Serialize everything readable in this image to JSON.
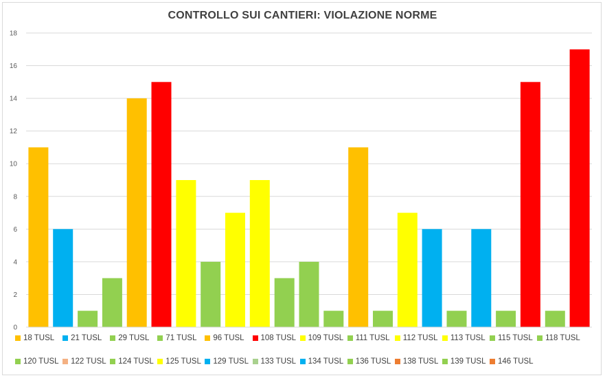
{
  "chart_data": {
    "type": "bar",
    "title": "CONTROLLO SUI CANTIERI: VIOLAZIONE NORME",
    "xlabel": "",
    "ylabel": "",
    "ylim": [
      0,
      18
    ],
    "yticks": [
      0,
      2,
      4,
      6,
      8,
      10,
      12,
      14,
      16,
      18
    ],
    "grid": true,
    "legend_position": "bottom",
    "series": [
      {
        "name": "18 TUSL",
        "value": 11,
        "color": "#FFC000"
      },
      {
        "name": "21 TUSL",
        "value": 6,
        "color": "#00B0F0"
      },
      {
        "name": "29 TUSL",
        "value": 1,
        "color": "#92D050"
      },
      {
        "name": "71 TUSL",
        "value": 3,
        "color": "#92D050"
      },
      {
        "name": "96 TUSL",
        "value": 14,
        "color": "#FFC000"
      },
      {
        "name": "108 TUSL",
        "value": 15,
        "color": "#FF0000"
      },
      {
        "name": "109 TUSL",
        "value": 9,
        "color": "#FFFF00"
      },
      {
        "name": "111 TUSL",
        "value": 4,
        "color": "#92D050"
      },
      {
        "name": "112 TUSL",
        "value": 7,
        "color": "#FFFF00"
      },
      {
        "name": "113 TUSL",
        "value": 9,
        "color": "#FFFF00"
      },
      {
        "name": "115 TUSL",
        "value": 3,
        "color": "#92D050"
      },
      {
        "name": "118 TUSL",
        "value": 4,
        "color": "#92D050"
      },
      {
        "name": "120 TUSL",
        "value": 1,
        "color": "#92D050"
      },
      {
        "name": "122 TUSL",
        "value": 11,
        "color": "#FFC000"
      },
      {
        "name": "124 TUSL",
        "value": 1,
        "color": "#92D050"
      },
      {
        "name": "125 TUSL",
        "value": 7,
        "color": "#FFFF00"
      },
      {
        "name": "129 TUSL",
        "value": 6,
        "color": "#00B0F0"
      },
      {
        "name": "133 TUSL",
        "value": 1,
        "color": "#92D050"
      },
      {
        "name": "134 TUSL",
        "value": 6,
        "color": "#00B0F0"
      },
      {
        "name": "136 TUSL",
        "value": 1,
        "color": "#92D050"
      },
      {
        "name": "138 TUSL",
        "value": 15,
        "color": "#FF0000"
      },
      {
        "name": "139 TUSL",
        "value": 1,
        "color": "#92D050"
      },
      {
        "name": "146 TUSL",
        "value": 17,
        "color": "#FF0000"
      }
    ],
    "legend": [
      {
        "label": "18 TUSL",
        "color": "#FFC000"
      },
      {
        "label": "21 TUSL",
        "color": "#00B0F0"
      },
      {
        "label": "29 TUSL",
        "color": "#92D050"
      },
      {
        "label": "71 TUSL",
        "color": "#92D050"
      },
      {
        "label": "96 TUSL",
        "color": "#FFC000"
      },
      {
        "label": "108 TUSL",
        "color": "#FF0000"
      },
      {
        "label": "109 TUSL",
        "color": "#FFFF00"
      },
      {
        "label": "111 TUSL",
        "color": "#92D050"
      },
      {
        "label": "112 TUSL",
        "color": "#FFFF00"
      },
      {
        "label": "113 TUSL",
        "color": "#FFFF00"
      },
      {
        "label": "115 TUSL",
        "color": "#92D050"
      },
      {
        "label": "118 TUSL",
        "color": "#92D050"
      },
      {
        "label": "120 TUSL",
        "color": "#92D050"
      },
      {
        "label": "122 TUSL",
        "color": "#F4B183"
      },
      {
        "label": "124 TUSL",
        "color": "#92D050"
      },
      {
        "label": "125 TUSL",
        "color": "#FFFF00"
      },
      {
        "label": "129 TUSL",
        "color": "#00B0F0"
      },
      {
        "label": "133 TUSL",
        "color": "#A9D18E"
      },
      {
        "label": "134 TUSL",
        "color": "#00B0F0"
      },
      {
        "label": "136 TUSL",
        "color": "#92D050"
      },
      {
        "label": "138 TUSL",
        "color": "#ED7D31"
      },
      {
        "label": "139 TUSL",
        "color": "#92D050"
      },
      {
        "label": "146 TUSL",
        "color": "#ED7D31"
      }
    ]
  }
}
